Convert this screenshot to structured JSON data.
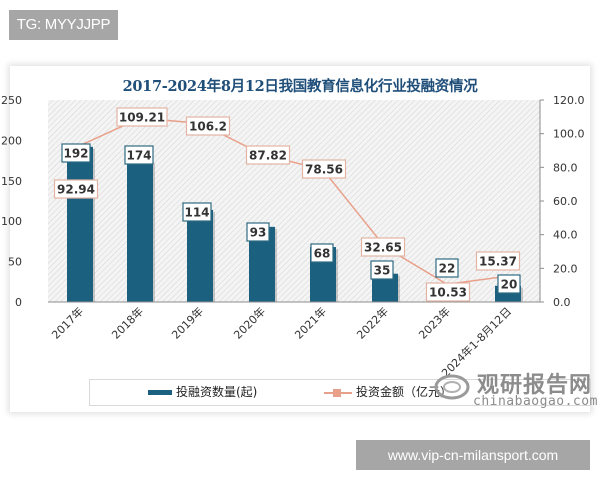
{
  "header": {
    "badge": "TG: MYYJJPP"
  },
  "footer": {
    "badge": "www.vip-cn-milansport.com"
  },
  "watermark": {
    "cn": "观研报告网",
    "en": "chinabaogao.com"
  },
  "colors": {
    "bar": "#1c6080",
    "line": "#e8a08a",
    "title": "#1f4e79",
    "badge_bg": "#a6a6a6"
  },
  "chart_data": {
    "type": "bar+line",
    "title": "2017-2024年8月12日我国教育信息化行业投融资情况",
    "categories": [
      "2017年",
      "2018年",
      "2019年",
      "2020年",
      "2021年",
      "2022年",
      "2023年",
      "2024年1-8月12日"
    ],
    "series": [
      {
        "name": "投融资数量(起)",
        "type": "bar",
        "axis": "left",
        "values": [
          192,
          174,
          114,
          93,
          68,
          35,
          22,
          20
        ]
      },
      {
        "name": "投资金额（亿元）",
        "type": "line",
        "axis": "right",
        "values": [
          92.94,
          109.21,
          106.2,
          87.82,
          78.56,
          32.65,
          10.53,
          15.37
        ]
      }
    ],
    "left_axis": {
      "ylim": [
        0,
        250
      ],
      "ticks": [
        "0",
        "50",
        "100",
        "150",
        "200",
        "250"
      ]
    },
    "right_axis": {
      "ylim": [
        0,
        120
      ],
      "ticks": [
        "0.0",
        "20.0",
        "40.0",
        "60.0",
        "80.0",
        "100.0",
        "120.0"
      ]
    },
    "legend": {
      "position": "bottom",
      "items": [
        "投融资数量(起)",
        "投资金额（亿元）"
      ]
    },
    "bar_labels": [
      "192",
      "174",
      "114",
      "93",
      "68",
      "35",
      "22",
      "20"
    ],
    "line_labels": [
      "92.94",
      "109.21",
      "106.2",
      "87.82",
      "78.56",
      "32.65",
      "10.53",
      "15.37"
    ],
    "grid": false,
    "background": "diagonal-hatch"
  }
}
